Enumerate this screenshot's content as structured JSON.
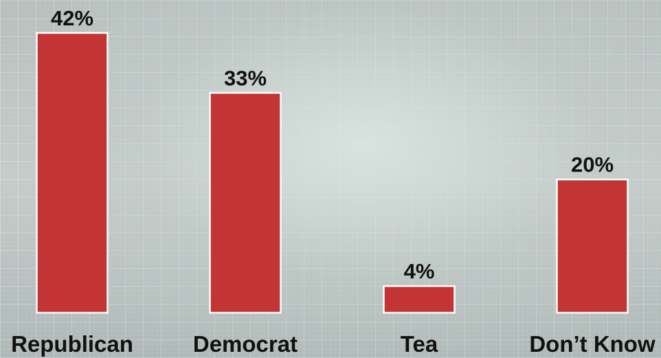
{
  "chart_data": {
    "type": "bar",
    "title": "",
    "xlabel": "",
    "ylabel": "",
    "categories": [
      "Republican",
      "Democrat",
      "Tea",
      "Don’t Know"
    ],
    "values": [
      42,
      33,
      4,
      20
    ],
    "value_labels": [
      "42%",
      "33%",
      "4%",
      "20%"
    ],
    "unit": "%",
    "ylim": [
      0,
      42
    ],
    "grid": true,
    "legend": "none",
    "colors": {
      "bar": "#c33535",
      "bar_border": "#ffffff",
      "text": "#111111"
    }
  }
}
